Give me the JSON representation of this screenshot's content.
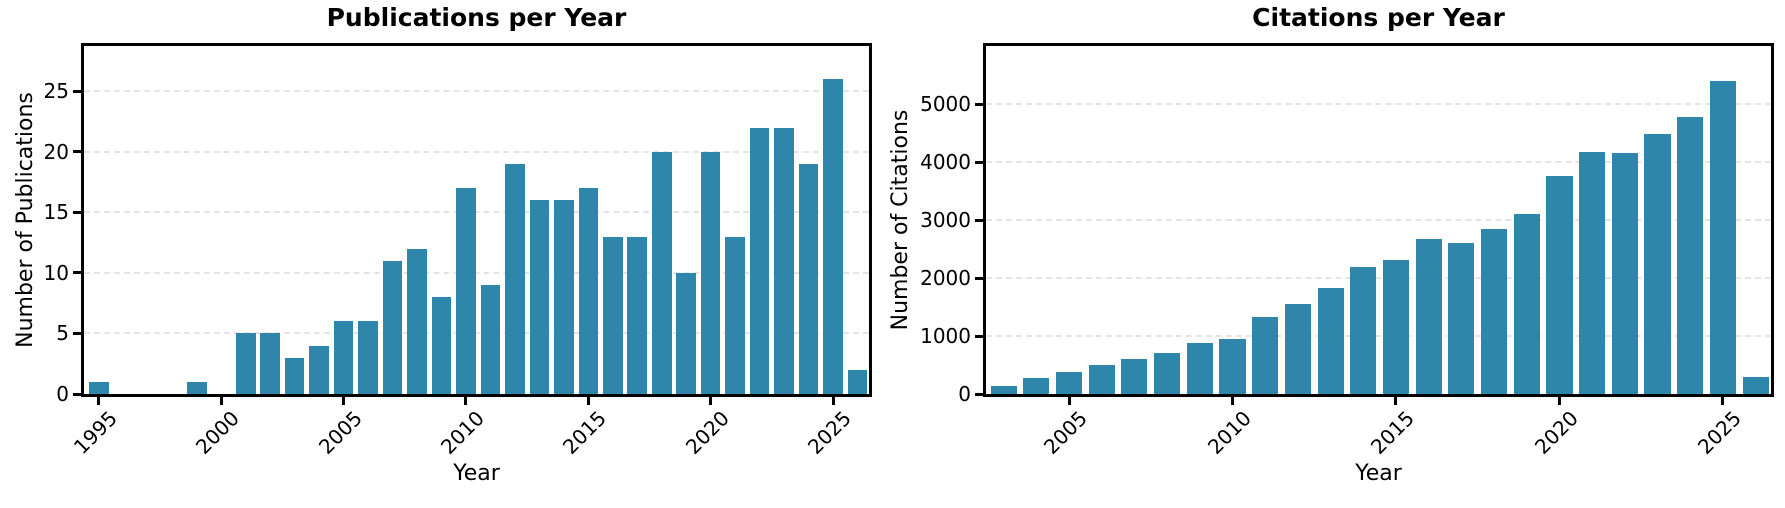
{
  "figure": {
    "background_color": "#ffffff",
    "text_color": "#000000"
  },
  "chart_data": [
    {
      "type": "bar",
      "title": "Publications per Year",
      "xlabel": "Year",
      "ylabel": "Number of Publications",
      "bar_color": "#2e86ab",
      "grid_color": "#e4e4e4",
      "spine_color": "#000000",
      "legend": "none",
      "grid": "horizontal-dashed",
      "x": [
        1995,
        1999,
        2001,
        2002,
        2003,
        2004,
        2005,
        2006,
        2007,
        2008,
        2009,
        2010,
        2011,
        2012,
        2013,
        2014,
        2015,
        2016,
        2017,
        2018,
        2019,
        2020,
        2021,
        2022,
        2023,
        2024,
        2025,
        2026
      ],
      "values": [
        1,
        1,
        5,
        5,
        3,
        4,
        6,
        6,
        11,
        12,
        8,
        17,
        9,
        19,
        16,
        16,
        17,
        13,
        13,
        20,
        10,
        20,
        13,
        22,
        22,
        19,
        26,
        2
      ],
      "xticks": [
        1995,
        2000,
        2005,
        2010,
        2015,
        2020,
        2025
      ],
      "yticks": [
        0,
        5,
        10,
        15,
        20,
        25
      ],
      "xlim": [
        1994.39,
        2026.47
      ],
      "ylim": [
        0,
        28.76
      ],
      "bar_width_years": 0.8,
      "xtick_rotation_deg": 45
    },
    {
      "type": "bar",
      "title": "Citations per Year",
      "xlabel": "Year",
      "ylabel": "Number of Citations",
      "bar_color": "#2e86ab",
      "grid_color": "#e4e4e4",
      "spine_color": "#000000",
      "legend": "none",
      "grid": "horizontal-dashed",
      "x": [
        2003,
        2004,
        2005,
        2006,
        2007,
        2008,
        2009,
        2010,
        2011,
        2012,
        2013,
        2014,
        2015,
        2016,
        2017,
        2018,
        2019,
        2020,
        2021,
        2022,
        2023,
        2024,
        2025,
        2026
      ],
      "values": [
        140,
        280,
        385,
        505,
        610,
        715,
        880,
        955,
        1320,
        1555,
        1820,
        2190,
        2315,
        2670,
        2605,
        2845,
        3100,
        3765,
        4180,
        4160,
        4485,
        4775,
        5405,
        290
      ],
      "xticks": [
        2005,
        2010,
        2015,
        2020,
        2025
      ],
      "yticks": [
        0,
        1000,
        2000,
        3000,
        4000,
        5000
      ],
      "xlim": [
        2002.46,
        2026.47
      ],
      "ylim": [
        0,
        6000
      ],
      "bar_width_years": 0.8,
      "xtick_rotation_deg": 45
    }
  ]
}
